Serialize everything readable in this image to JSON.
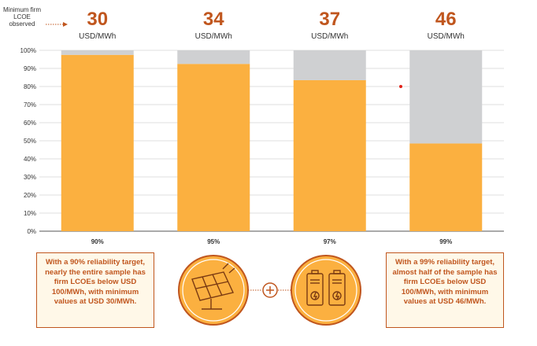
{
  "side_label": "Minimum firm LCOE observed",
  "chart_data": {
    "type": "bar",
    "stacked": true,
    "categories": [
      "90%",
      "95%",
      "97%",
      "99%"
    ],
    "series": [
      {
        "values": [
          97.5,
          92.5,
          83.5,
          48.5
        ],
        "color": "#fbb040"
      },
      {
        "values": [
          2.5,
          7.5,
          16.5,
          51.5
        ],
        "color": "#cfd0d2"
      }
    ],
    "ylim": [
      0,
      100
    ],
    "yticks": [
      "0%",
      "10%",
      "20%",
      "30%",
      "40%",
      "50%",
      "60%",
      "70%",
      "80%",
      "90%",
      "100%"
    ],
    "top_values": [
      "30",
      "34",
      "37",
      "46"
    ],
    "top_unit": "USD/MWh",
    "grid": true
  },
  "notes": {
    "left": "With a 90% reliability target, nearly the entire sample has firm LCOEs below USD 100/MWh, with minimum values at USD 30/MWh.",
    "right": "With a 99% reliability target, almost half of the sample has firm LCOEs below USD 100/MWh, with minimum values at USD 46/MWh."
  },
  "icons": [
    "solar-panel-icon",
    "plus-icon",
    "battery-icon"
  ],
  "colors": {
    "accent": "#c0561e",
    "bar": "#fbb040",
    "rest": "#cfd0d2",
    "grid": "#d4d4d4"
  }
}
